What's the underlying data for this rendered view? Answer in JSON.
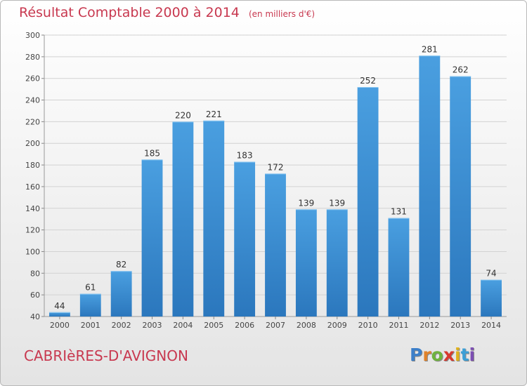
{
  "header": {
    "title": "Résultat Comptable 2000 à 2014",
    "subtitle": "(en milliers d'€)"
  },
  "footer": {
    "town": "CABRIèRES-D'AVIGNON",
    "logo": {
      "letters": [
        "P",
        "r",
        "o",
        "x",
        "i",
        "t",
        "i"
      ],
      "colors": [
        "#3c7fc9",
        "#e0822a",
        "#6fb33d",
        "#d8392f",
        "#e0b21c",
        "#3c9fd6",
        "#7d4fb3"
      ]
    }
  },
  "chart_data": {
    "type": "bar",
    "categories": [
      "2000",
      "2001",
      "2002",
      "2003",
      "2004",
      "2005",
      "2006",
      "2007",
      "2008",
      "2009",
      "2010",
      "2011",
      "2012",
      "2013",
      "2014"
    ],
    "values": [
      44,
      61,
      82,
      185,
      220,
      221,
      183,
      172,
      139,
      139,
      252,
      131,
      281,
      262,
      74
    ],
    "ylim": [
      40,
      300
    ],
    "yticks": [
      40,
      60,
      80,
      100,
      120,
      140,
      160,
      180,
      200,
      220,
      240,
      260,
      280,
      300
    ],
    "grid": true,
    "data_labels": true,
    "bar_color": "#4a9fe0",
    "bar_color_dark": "#2b77bd"
  }
}
